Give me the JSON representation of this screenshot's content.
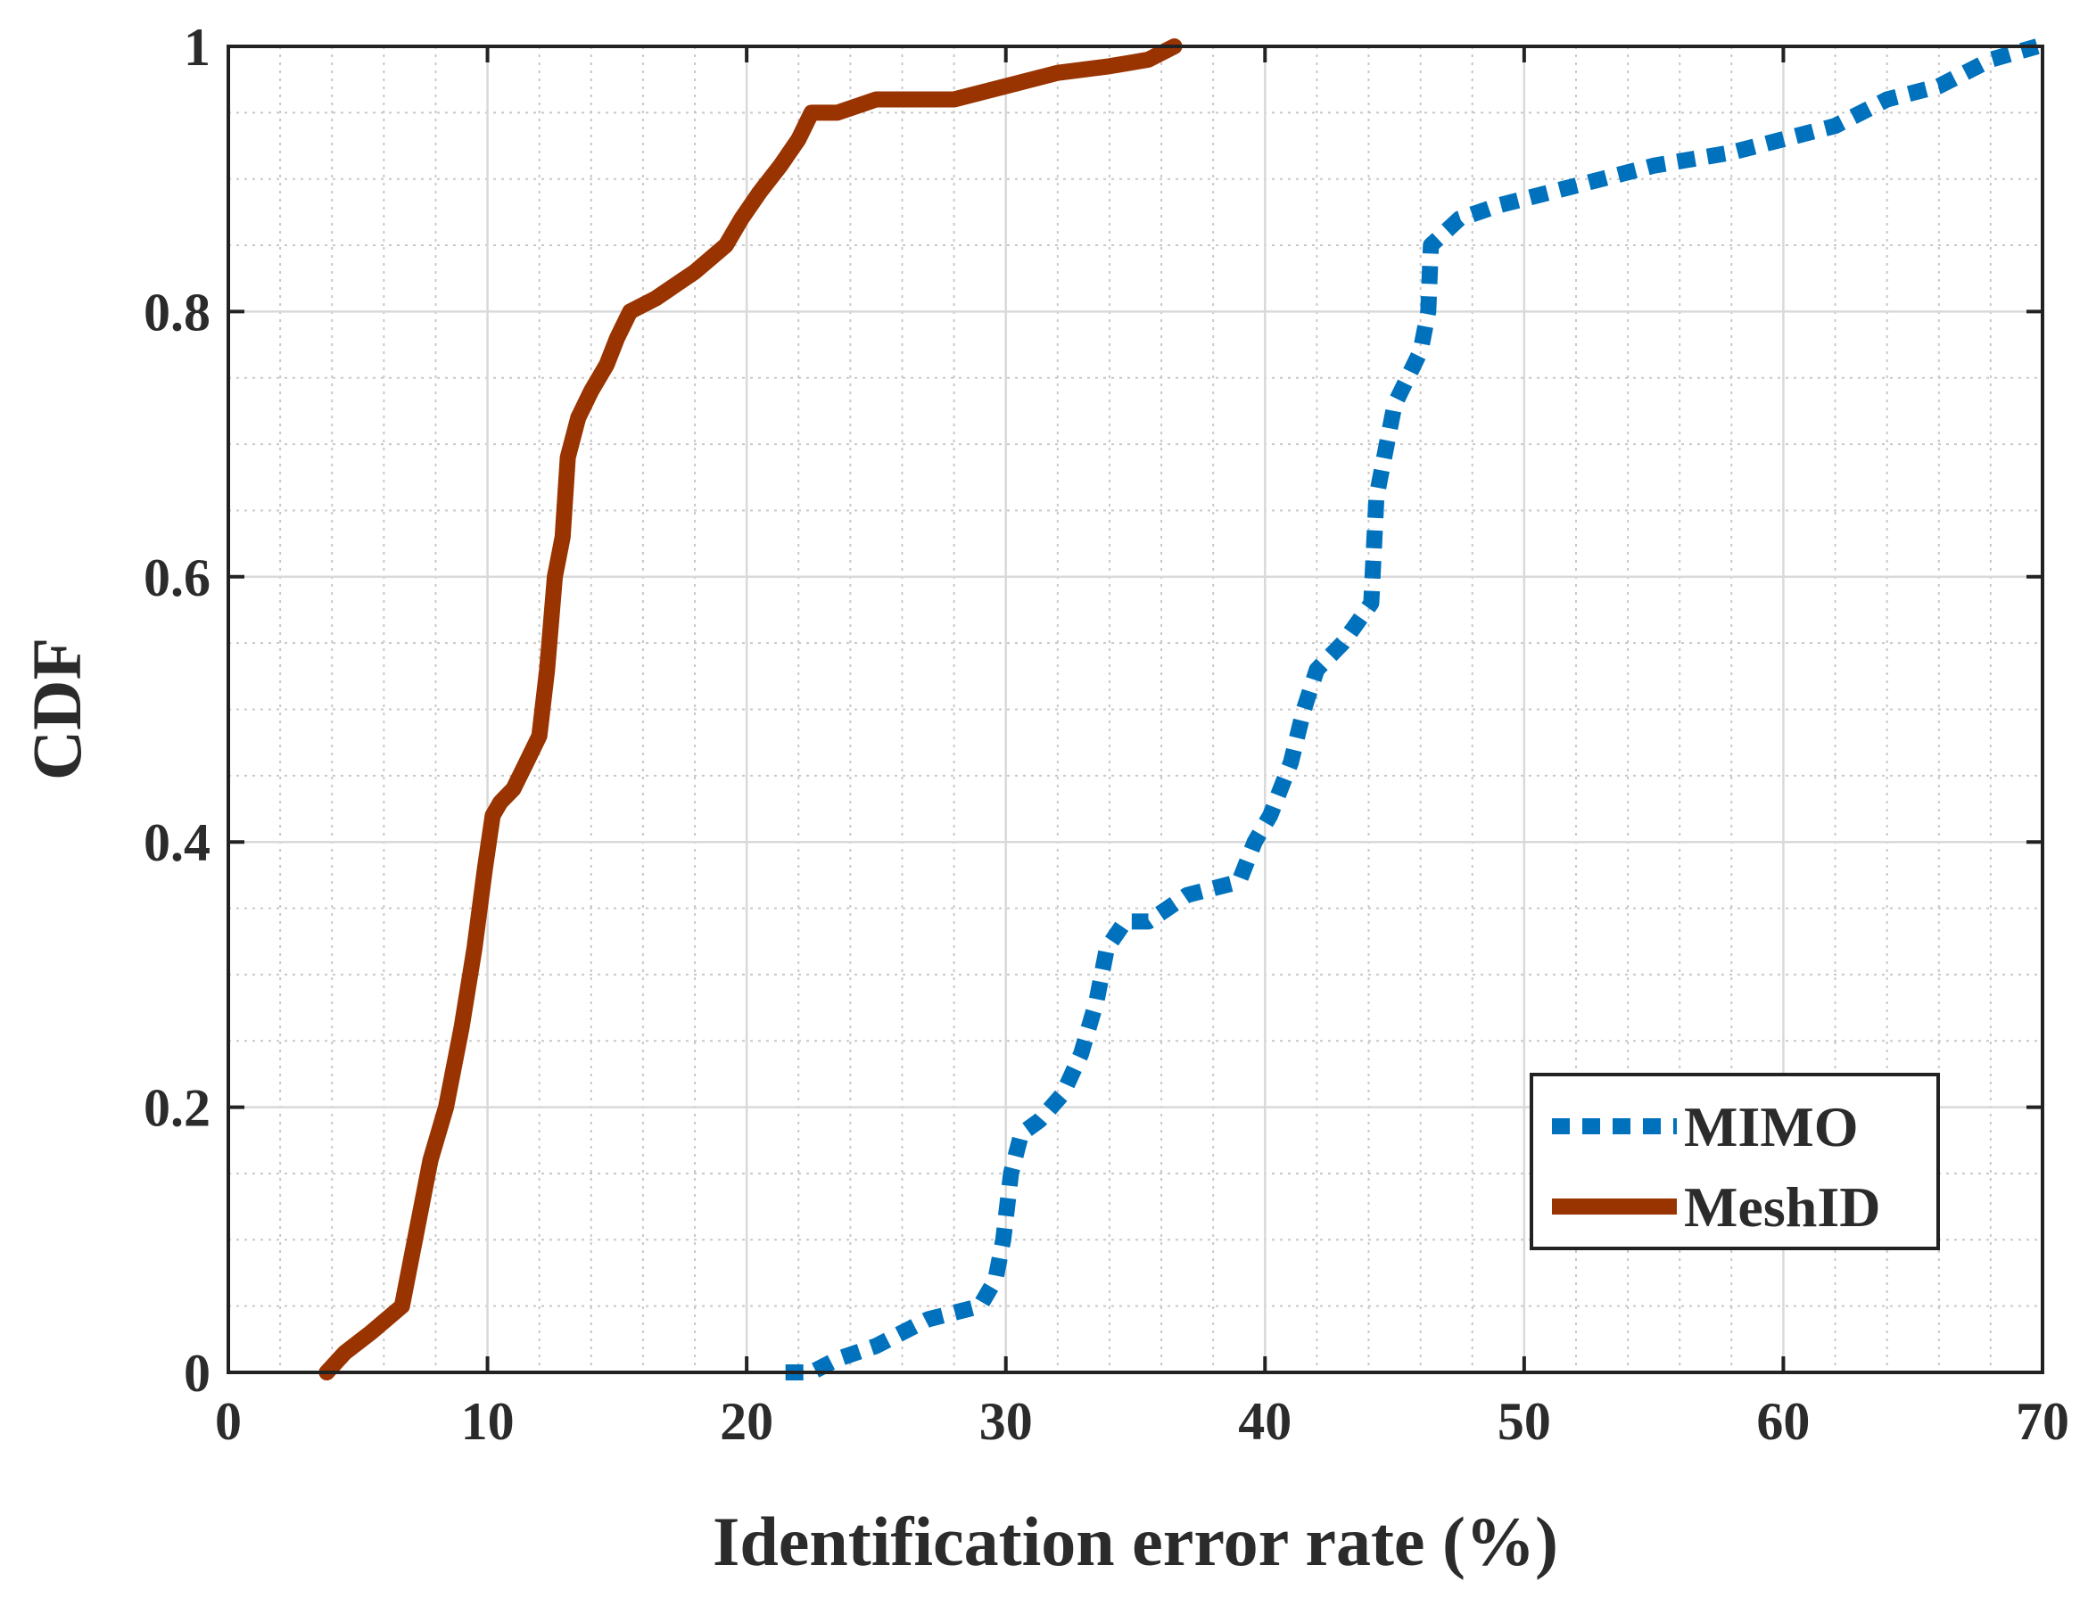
{
  "chart_data": {
    "type": "line",
    "title": "",
    "xlabel": "Identification error rate (%)",
    "ylabel": "CDF",
    "xlim": [
      0,
      70
    ],
    "ylim": [
      0,
      1
    ],
    "xticks": [
      0,
      10,
      20,
      30,
      40,
      50,
      60,
      70
    ],
    "xtick_labels": [
      "0",
      "10",
      "20",
      "30",
      "40",
      "50",
      "60",
      "70"
    ],
    "yticks": [
      0,
      0.2,
      0.4,
      0.6,
      0.8,
      1
    ],
    "ytick_labels": [
      "0",
      "0.2",
      "0.4",
      "0.6",
      "0.8",
      "1"
    ],
    "x_minor_step": 2,
    "y_minor_step": 0.05,
    "grid": true,
    "legend_position": "bottom-right",
    "series": [
      {
        "name": "MIMO",
        "color": "#0072BD",
        "style": "dashed",
        "x": [
          21.5,
          22.5,
          23.5,
          25,
          27,
          29,
          29.6,
          29.9,
          30.2,
          30.6,
          31.3,
          32.2,
          32.9,
          33.5,
          33.9,
          34.6,
          35.5,
          37,
          39,
          39.6,
          40.2,
          41,
          41.5,
          42,
          43,
          44.1,
          44.2,
          44.3,
          44.6,
          45,
          45.5,
          46,
          46.3,
          46.4,
          47.5,
          49,
          51,
          53,
          55,
          58,
          60,
          62,
          64,
          66,
          68,
          69.8
        ],
        "y": [
          0,
          0,
          0.01,
          0.02,
          0.04,
          0.05,
          0.07,
          0.1,
          0.15,
          0.18,
          0.19,
          0.21,
          0.24,
          0.28,
          0.32,
          0.34,
          0.34,
          0.36,
          0.37,
          0.4,
          0.42,
          0.46,
          0.5,
          0.53,
          0.55,
          0.58,
          0.62,
          0.66,
          0.69,
          0.73,
          0.75,
          0.77,
          0.8,
          0.85,
          0.87,
          0.88,
          0.89,
          0.9,
          0.91,
          0.92,
          0.93,
          0.94,
          0.96,
          0.97,
          0.99,
          1.0
        ]
      },
      {
        "name": "MeshID",
        "color": "#993300",
        "style": "solid",
        "x": [
          3.8,
          4.5,
          5.5,
          6.7,
          7.2,
          7.8,
          8.4,
          9.0,
          9.5,
          9.9,
          10.2,
          10.5,
          11,
          11.5,
          12.0,
          12.3,
          12.6,
          12.9,
          13.1,
          13.5,
          14,
          14.6,
          15,
          15.5,
          16.5,
          18,
          19.2,
          19.8,
          20.5,
          21.3,
          22,
          22.5,
          23.5,
          25,
          28,
          30,
          32,
          34,
          35.5,
          36.5
        ],
        "y": [
          0,
          0.015,
          0.03,
          0.05,
          0.1,
          0.16,
          0.2,
          0.26,
          0.32,
          0.38,
          0.42,
          0.43,
          0.44,
          0.46,
          0.48,
          0.53,
          0.6,
          0.63,
          0.69,
          0.72,
          0.74,
          0.76,
          0.78,
          0.8,
          0.81,
          0.83,
          0.85,
          0.87,
          0.89,
          0.91,
          0.93,
          0.95,
          0.95,
          0.96,
          0.96,
          0.97,
          0.98,
          0.985,
          0.99,
          1.0
        ]
      }
    ]
  }
}
